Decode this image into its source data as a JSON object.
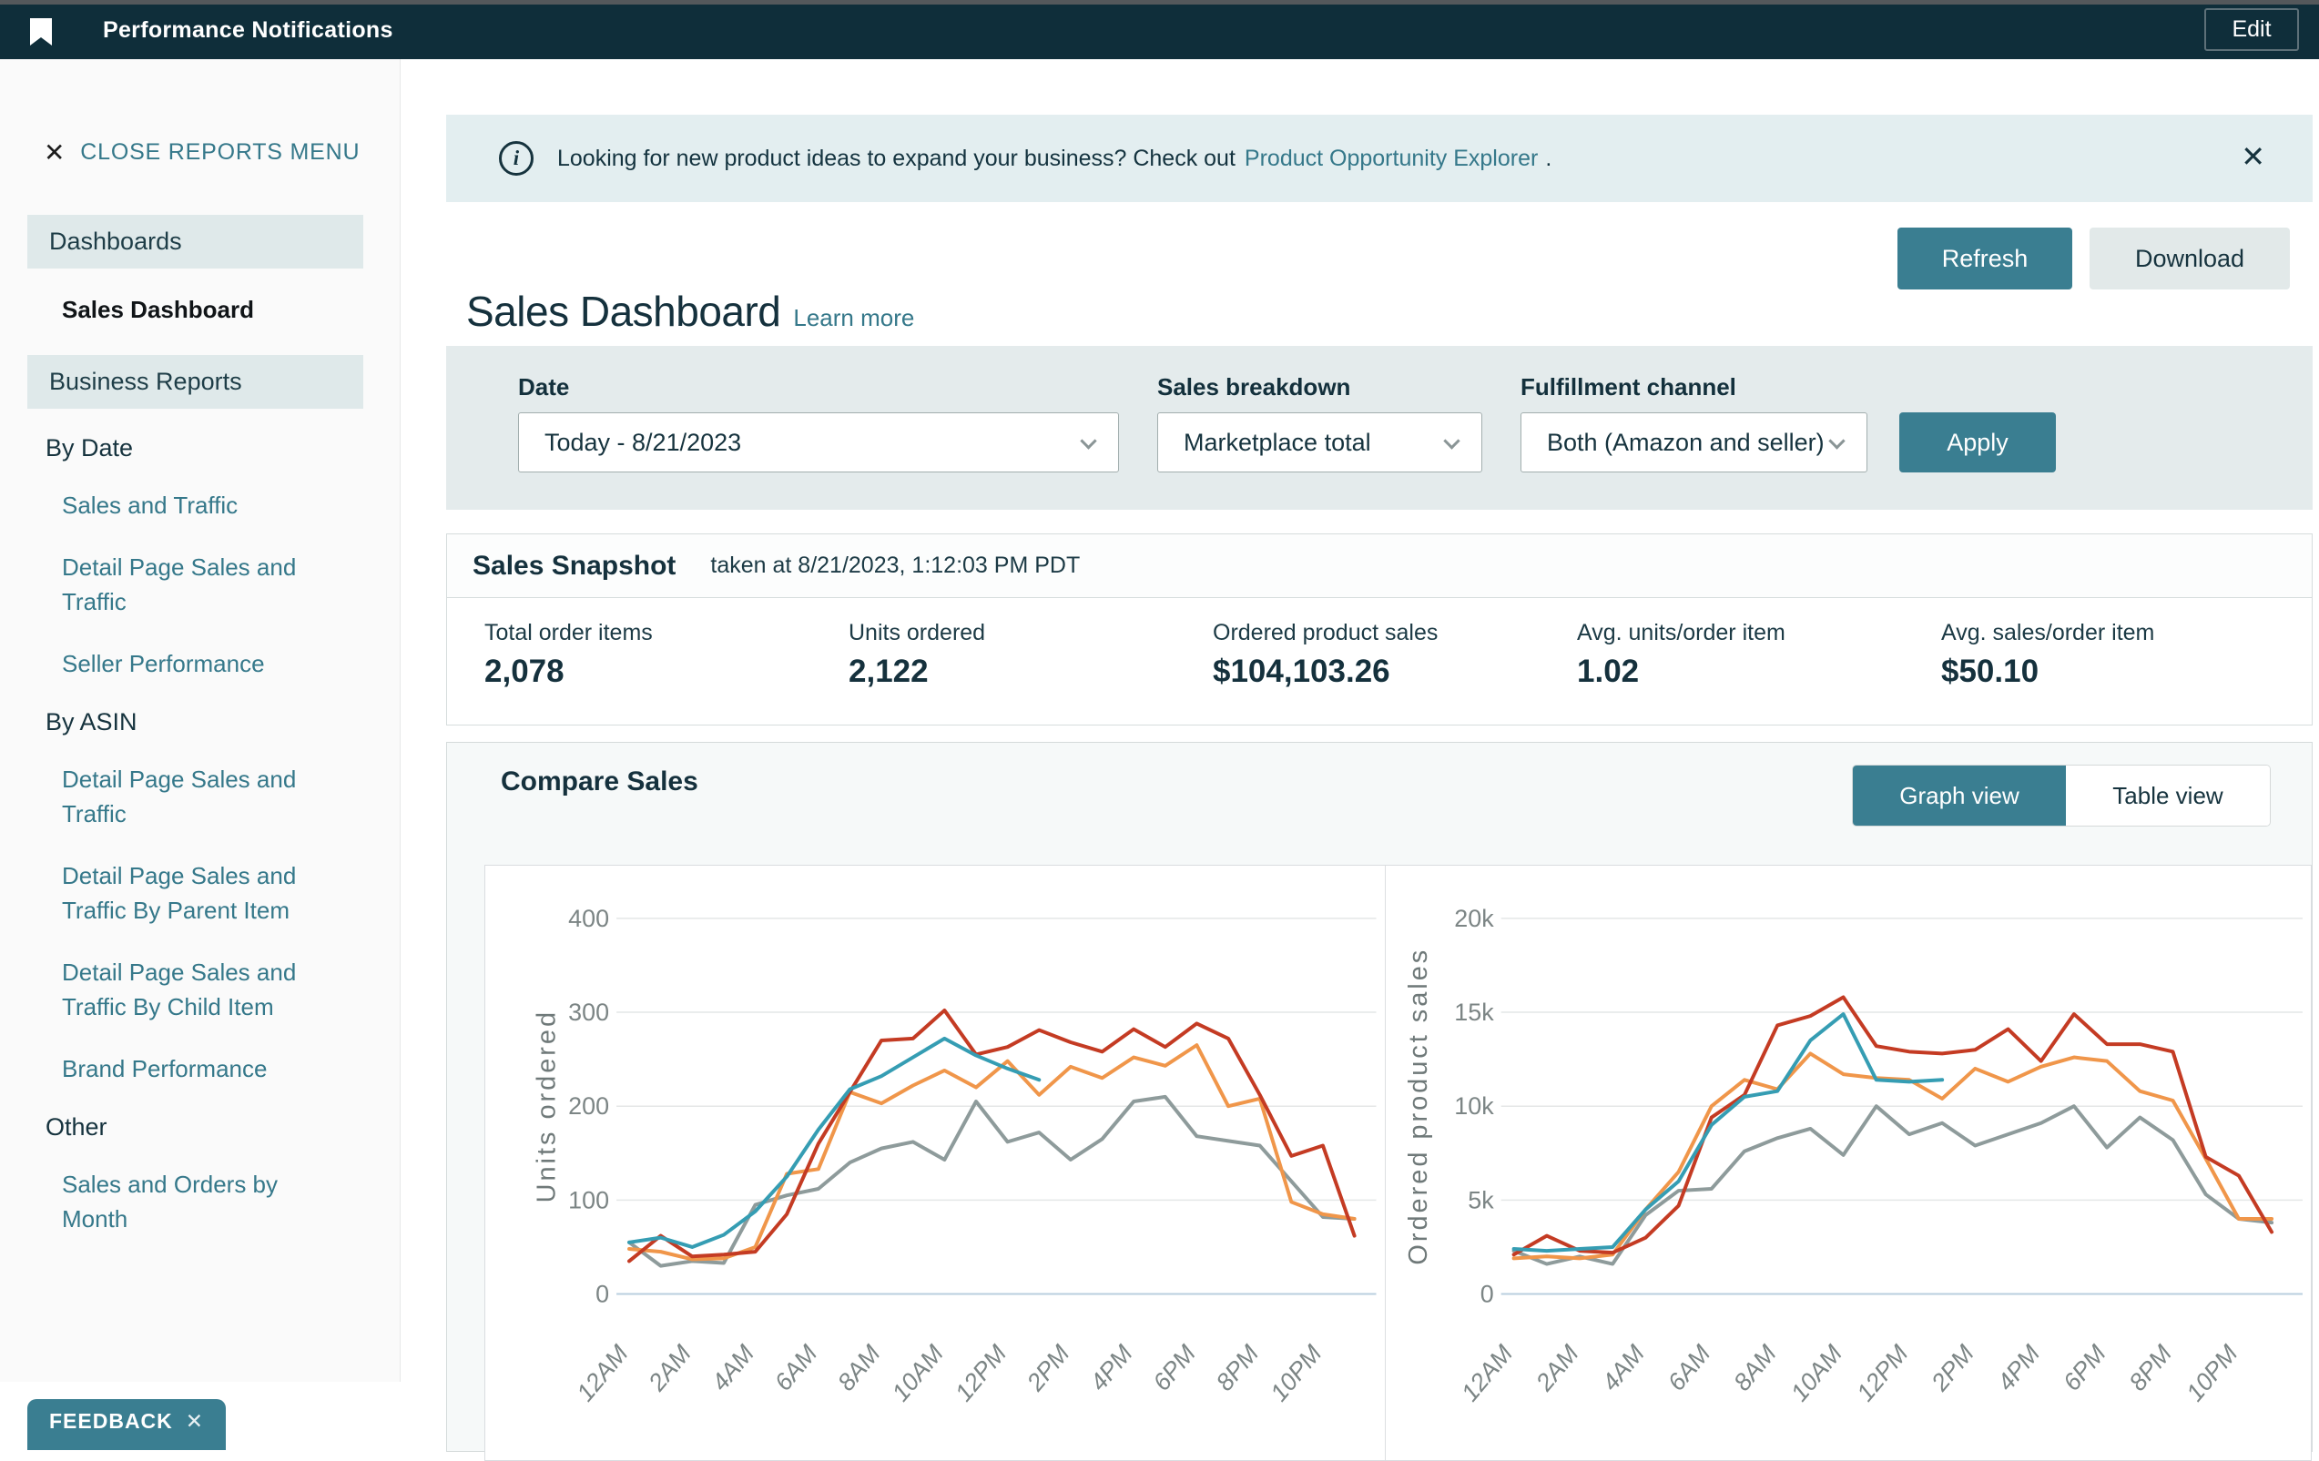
{
  "topbar": {
    "title": "Performance Notifications",
    "edit_label": "Edit"
  },
  "sidebar": {
    "close_label": "CLOSE REPORTS MENU",
    "items": [
      {
        "type": "header",
        "label": "Dashboards"
      },
      {
        "type": "active",
        "label": "Sales Dashboard"
      },
      {
        "type": "header",
        "label": "Business Reports"
      },
      {
        "type": "subhead",
        "label": "By Date"
      },
      {
        "type": "link",
        "label": "Sales and Traffic"
      },
      {
        "type": "link",
        "label": "Detail Page Sales and Traffic"
      },
      {
        "type": "link",
        "label": "Seller Performance"
      },
      {
        "type": "subhead",
        "label": "By ASIN"
      },
      {
        "type": "link",
        "label": "Detail Page Sales and Traffic"
      },
      {
        "type": "link",
        "label": "Detail Page Sales and Traffic By Parent Item"
      },
      {
        "type": "link",
        "label": "Detail Page Sales and Traffic By Child Item"
      },
      {
        "type": "link",
        "label": "Brand Performance"
      },
      {
        "type": "subhead",
        "label": "Other"
      },
      {
        "type": "link",
        "label": "Sales and Orders by Month"
      }
    ],
    "feedback_label": "FEEDBACK"
  },
  "banner": {
    "text": "Looking for new product ideas to expand your business? Check out",
    "link_text": "Product Opportunity Explorer",
    "suffix": "."
  },
  "page": {
    "title": "Sales Dashboard",
    "learn_more": "Learn more",
    "refresh_label": "Refresh",
    "download_label": "Download"
  },
  "filters": {
    "date_label": "Date",
    "date_value": "Today - 8/21/2023",
    "breakdown_label": "Sales breakdown",
    "breakdown_value": "Marketplace total",
    "channel_label": "Fulfillment channel",
    "channel_value": "Both (Amazon and seller)",
    "apply_label": "Apply"
  },
  "snapshot": {
    "title": "Sales Snapshot",
    "taken_at": "taken at 8/21/2023, 1:12:03 PM PDT",
    "metrics": [
      {
        "label": "Total order items",
        "value": "2,078"
      },
      {
        "label": "Units ordered",
        "value": "2,122"
      },
      {
        "label": "Ordered product sales",
        "value": "$104,103.26"
      },
      {
        "label": "Avg. units/order item",
        "value": "1.02"
      },
      {
        "label": "Avg. sales/order item",
        "value": "$50.10"
      }
    ]
  },
  "compare": {
    "title": "Compare Sales",
    "graph_view_label": "Graph view",
    "table_view_label": "Table view"
  },
  "colors": {
    "accent_teal": "#3a7e91",
    "link_teal": "#35788a",
    "topbar_dark": "#0f2e3a",
    "line_red": "#c43b23",
    "line_orange": "#f0964a",
    "line_teal": "#359db3",
    "line_gray": "#8e9b9b"
  },
  "chart_data": [
    {
      "type": "line",
      "ylabel": "Units ordered",
      "x_labels": [
        "12AM",
        "2AM",
        "4AM",
        "6AM",
        "8AM",
        "10AM",
        "12PM",
        "2PM",
        "4PM",
        "6PM",
        "8PM",
        "10PM"
      ],
      "x_hours": 24,
      "ylim": [
        0,
        400
      ],
      "yticks": [
        0,
        100,
        200,
        300,
        400
      ],
      "ytick_labels": [
        "0",
        "100",
        "200",
        "300",
        "400"
      ],
      "grid": true,
      "legend_visible": false,
      "series": [
        {
          "name": "gray",
          "color": "#8e9b9b",
          "values": [
            55,
            30,
            35,
            33,
            95,
            105,
            112,
            140,
            155,
            162,
            143,
            205,
            162,
            172,
            143,
            165,
            205,
            210,
            168,
            163,
            158,
            120,
            82,
            80
          ]
        },
        {
          "name": "orange",
          "color": "#f0964a",
          "values": [
            48,
            45,
            37,
            38,
            50,
            128,
            133,
            215,
            203,
            222,
            238,
            220,
            248,
            212,
            242,
            230,
            252,
            243,
            265,
            200,
            208,
            98,
            85,
            80
          ]
        },
        {
          "name": "red",
          "color": "#c43b23",
          "values": [
            35,
            62,
            40,
            42,
            45,
            85,
            160,
            215,
            270,
            272,
            302,
            255,
            263,
            281,
            268,
            258,
            282,
            263,
            288,
            272,
            212,
            147,
            158,
            62
          ]
        },
        {
          "name": "teal",
          "color": "#359db3",
          "values": [
            55,
            60,
            50,
            63,
            88,
            125,
            175,
            218,
            232,
            252,
            272,
            254,
            240,
            228,
            null,
            null,
            null,
            null,
            null,
            null,
            null,
            null,
            null,
            null
          ]
        }
      ]
    },
    {
      "type": "line",
      "ylabel": "Ordered product sales",
      "x_labels": [
        "12AM",
        "2AM",
        "4AM",
        "6AM",
        "8AM",
        "10AM",
        "12PM",
        "2PM",
        "4PM",
        "6PM",
        "8PM",
        "10PM"
      ],
      "x_hours": 24,
      "ylim": [
        0,
        20000
      ],
      "yticks": [
        0,
        5000,
        10000,
        15000,
        20000
      ],
      "ytick_labels": [
        "0",
        "5k",
        "10k",
        "15k",
        "20k"
      ],
      "grid": true,
      "legend_visible": false,
      "series": [
        {
          "name": "gray",
          "color": "#8e9b9b",
          "values": [
            2300,
            1600,
            2000,
            1600,
            4200,
            5500,
            5600,
            7600,
            8300,
            8800,
            7400,
            10000,
            8500,
            9100,
            7900,
            8500,
            9100,
            10000,
            7800,
            9400,
            8200,
            5300,
            4000,
            3800
          ]
        },
        {
          "name": "orange",
          "color": "#f0964a",
          "values": [
            1900,
            2000,
            1900,
            2100,
            4500,
            6500,
            10000,
            11400,
            10900,
            12800,
            11700,
            11500,
            11400,
            10400,
            12000,
            11300,
            12100,
            12600,
            12400,
            10800,
            10300,
            7200,
            4000,
            4000
          ]
        },
        {
          "name": "red",
          "color": "#c43b23",
          "values": [
            2100,
            3100,
            2300,
            2200,
            3000,
            4700,
            9400,
            10600,
            14300,
            14800,
            15800,
            13200,
            12900,
            12800,
            13000,
            14100,
            12400,
            14900,
            13300,
            13300,
            12900,
            7300,
            6300,
            3300
          ]
        },
        {
          "name": "teal",
          "color": "#359db3",
          "values": [
            2400,
            2300,
            2400,
            2500,
            4500,
            6000,
            9000,
            10500,
            10800,
            13500,
            14900,
            11400,
            11300,
            11400,
            null,
            null,
            null,
            null,
            null,
            null,
            null,
            null,
            null,
            null
          ]
        }
      ]
    }
  ]
}
